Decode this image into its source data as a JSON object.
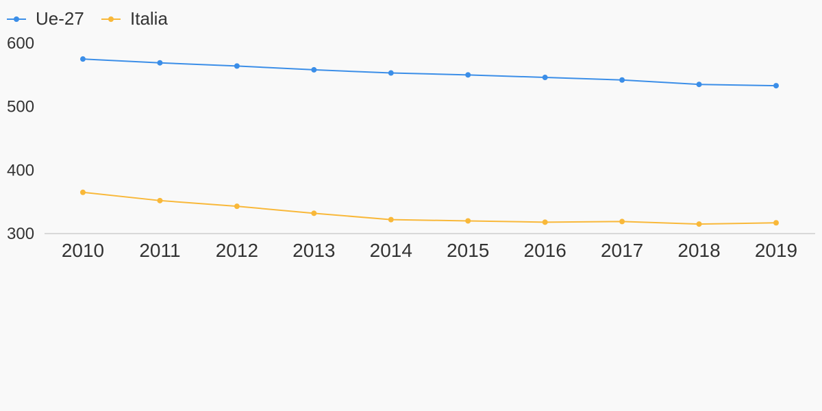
{
  "colors": {
    "background": "#f9f9f9",
    "text": "#333333",
    "baseline": "#d9d9d9"
  },
  "chart_data": {
    "type": "line",
    "x": [
      "2010",
      "2011",
      "2012",
      "2013",
      "2014",
      "2015",
      "2016",
      "2017",
      "2018",
      "2019"
    ],
    "series": [
      {
        "name": "Ue-27",
        "color": "#3b8ee8",
        "values": [
          575,
          569,
          564,
          558,
          553,
          550,
          546,
          542,
          535,
          533
        ]
      },
      {
        "name": "Italia",
        "color": "#f9b839",
        "values": [
          365,
          352,
          343,
          332,
          322,
          320,
          318,
          319,
          315,
          317
        ]
      }
    ],
    "yticks": [
      300,
      400,
      500,
      600
    ],
    "ylim": [
      300,
      600
    ],
    "legend": "top-left",
    "grid": false
  }
}
